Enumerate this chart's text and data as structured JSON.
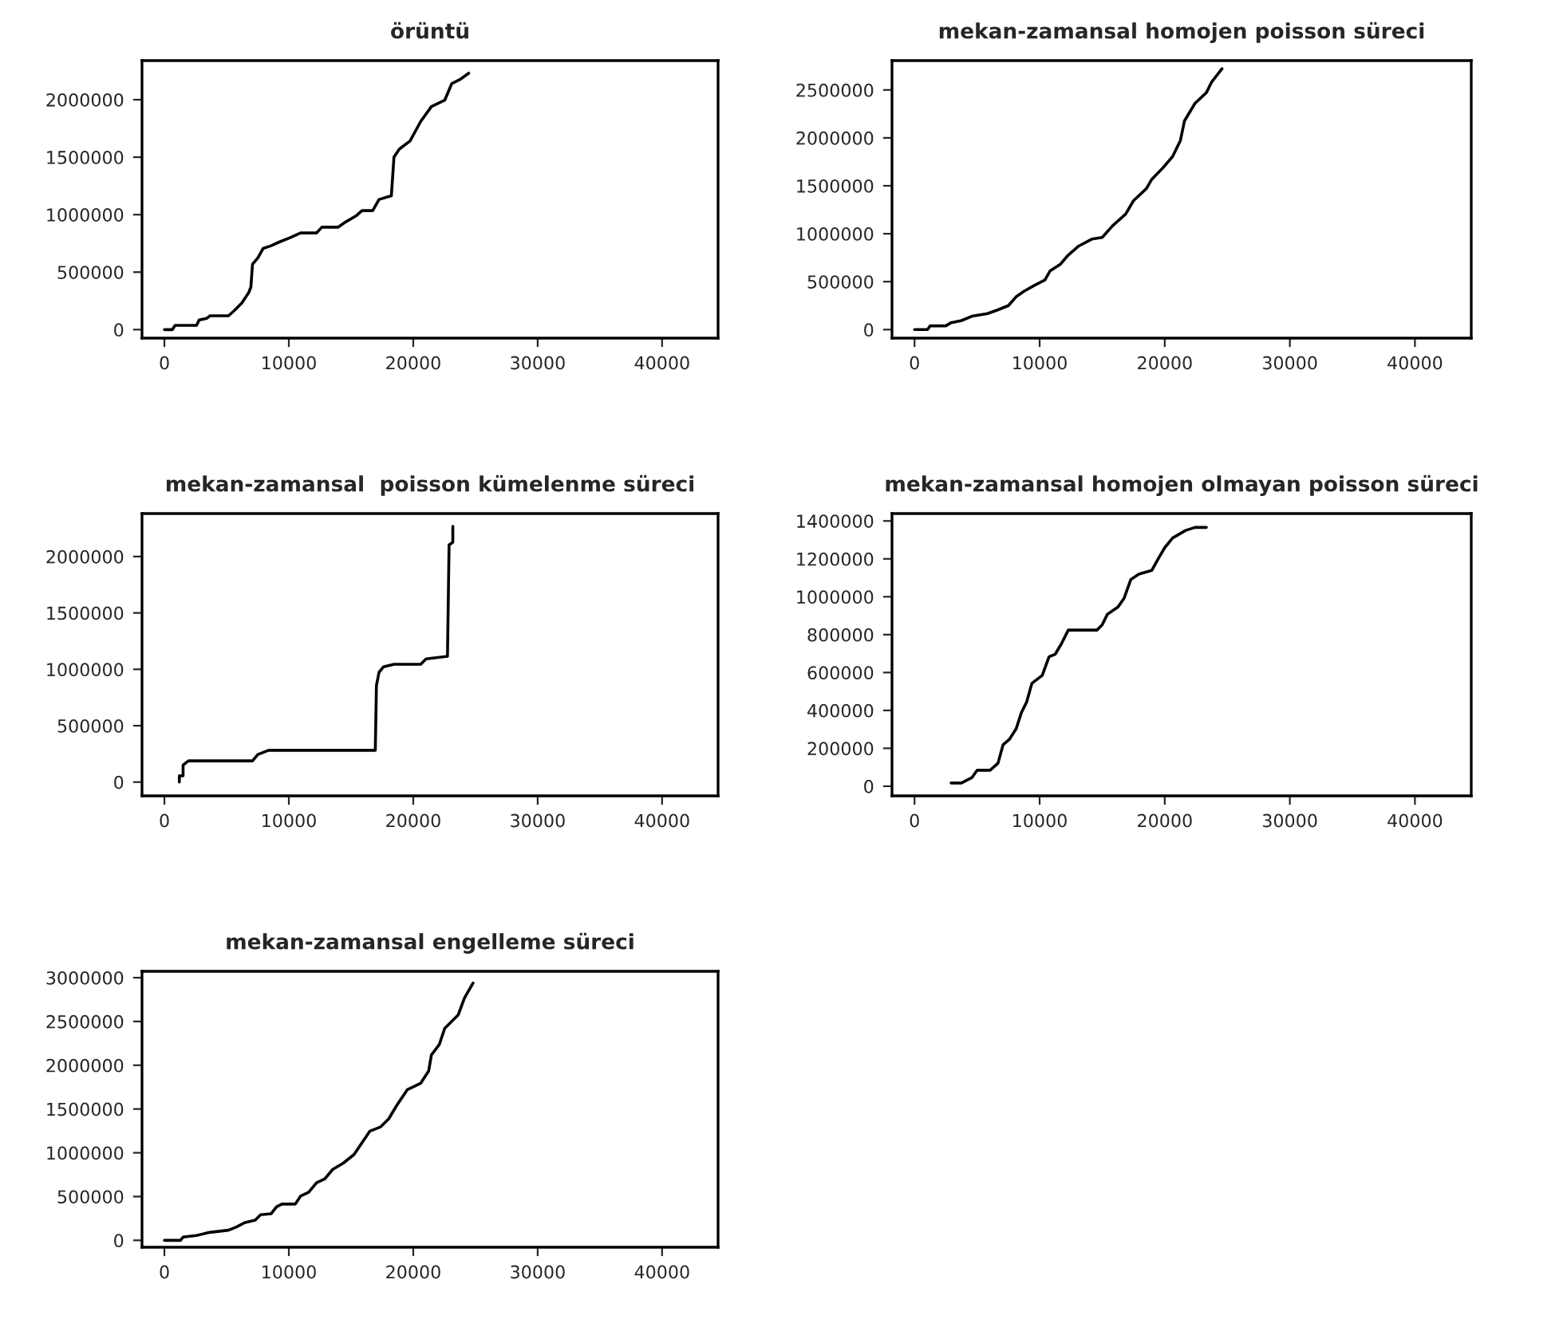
{
  "chart_data": [
    {
      "type": "line",
      "title": "örüntü",
      "color": "#000000",
      "xlim": [
        -1800,
        44500
      ],
      "ylim": [
        -74000,
        2340000
      ],
      "xticks": [
        0,
        10000,
        20000,
        30000,
        40000
      ],
      "yticks": [
        0,
        500000,
        1000000,
        1500000,
        2000000
      ],
      "x": [
        0,
        640,
        860,
        2580,
        2790,
        3430,
        3650,
        5150,
        5580,
        6220,
        6780,
        6950,
        7080,
        7510,
        7940,
        8580,
        9230,
        10090,
        10940,
        12230,
        12660,
        13950,
        14590,
        15450,
        15880,
        16740,
        17250,
        18240,
        18450,
        18880,
        19740,
        20600,
        21460,
        22530,
        23090,
        23820,
        24460
      ],
      "values": [
        0,
        0,
        37000,
        37000,
        83000,
        100000,
        120000,
        120000,
        162000,
        231000,
        323000,
        370000,
        568000,
        624000,
        707000,
        730000,
        762000,
        799000,
        841000,
        841000,
        891000,
        891000,
        938000,
        993000,
        1035000,
        1035000,
        1132000,
        1164000,
        1501000,
        1570000,
        1640000,
        1811000,
        1940000,
        1995000,
        2139000,
        2180000,
        2231000
      ]
    },
    {
      "type": "line",
      "title": "mekan-zamansal homojen poisson süreci",
      "color": "#000000",
      "xlim": [
        -1800,
        44500
      ],
      "ylim": [
        -89000,
        2806000
      ],
      "xticks": [
        0,
        10000,
        20000,
        30000,
        40000
      ],
      "yticks": [
        0,
        500000,
        1000000,
        1500000,
        2000000,
        2500000
      ],
      "x": [
        0,
        1040,
        1250,
        2500,
        2920,
        3750,
        4580,
        5830,
        6670,
        7500,
        8130,
        8750,
        9580,
        10420,
        10830,
        11670,
        12290,
        13130,
        14170,
        15000,
        15830,
        16880,
        17500,
        18540,
        18960,
        19790,
        20630,
        21250,
        21580,
        22420,
        23330,
        23750,
        24580
      ],
      "values": [
        0,
        0,
        39000,
        39000,
        72000,
        94000,
        139000,
        167000,
        206000,
        250000,
        344000,
        400000,
        461000,
        517000,
        611000,
        683000,
        778000,
        872000,
        944000,
        961000,
        1083000,
        1206000,
        1344000,
        1472000,
        1567000,
        1678000,
        1806000,
        1972000,
        2178000,
        2361000,
        2472000,
        2583000,
        2722000
      ]
    },
    {
      "type": "line",
      "title": "mekan-zamansal  poisson kümelenme süreci",
      "color": "#000000",
      "xlim": [
        -1800,
        44500
      ],
      "ylim": [
        -122000,
        2381000
      ],
      "xticks": [
        0,
        10000,
        20000,
        30000,
        40000
      ],
      "yticks": [
        0,
        500000,
        1000000,
        1500000,
        2000000
      ],
      "x": [
        1200,
        1200,
        1500,
        1500,
        1930,
        7080,
        7510,
        8370,
        16950,
        17040,
        17250,
        17600,
        18450,
        20600,
        21030,
        22750,
        22880,
        23180,
        23180
      ],
      "values": [
        0,
        56000,
        56000,
        151000,
        188000,
        188000,
        245000,
        282000,
        282000,
        856000,
        974000,
        1021000,
        1045000,
        1045000,
        1092000,
        1115000,
        2104000,
        2127000,
        2268000
      ]
    },
    {
      "type": "line",
      "title": "mekan-zamansal homojen olmayan poisson süreci",
      "color": "#000000",
      "xlim": [
        -1800,
        44500
      ],
      "ylim": [
        -51000,
        1439000
      ],
      "xticks": [
        0,
        10000,
        20000,
        30000,
        40000
      ],
      "yticks": [
        0,
        200000,
        400000,
        600000,
        800000,
        1000000,
        1200000,
        1400000
      ],
      "x": [
        2920,
        3750,
        4580,
        5000,
        6040,
        6670,
        7080,
        7580,
        8130,
        8540,
        8960,
        9380,
        10210,
        10750,
        11250,
        11750,
        12290,
        14580,
        15000,
        15420,
        16250,
        16750,
        17290,
        17920,
        18960,
        19500,
        20000,
        20630,
        21670,
        22420,
        23330
      ],
      "values": [
        17000,
        17000,
        45000,
        84000,
        84000,
        121000,
        219000,
        247000,
        304000,
        388000,
        444000,
        543000,
        585000,
        683000,
        697000,
        753000,
        824000,
        824000,
        852000,
        908000,
        945000,
        992000,
        1091000,
        1119000,
        1139000,
        1203000,
        1259000,
        1310000,
        1350000,
        1366000,
        1366000
      ]
    },
    {
      "type": "line",
      "title": "mekan-zamansal engelleme süreci",
      "color": "#000000",
      "xlim": [
        -1800,
        44500
      ],
      "ylim": [
        -79000,
        3073000
      ],
      "xticks": [
        0,
        10000,
        20000,
        30000,
        40000
      ],
      "yticks": [
        0,
        500000,
        1000000,
        1500000,
        2000000,
        2500000,
        3000000
      ],
      "x": [
        0,
        1290,
        1500,
        2580,
        3650,
        5150,
        5790,
        6440,
        7300,
        7730,
        8580,
        9010,
        9440,
        10520,
        10940,
        11590,
        12230,
        12880,
        13520,
        14380,
        15240,
        15880,
        16520,
        17380,
        18030,
        18670,
        19530,
        20600,
        21240,
        21460,
        22100,
        22530,
        23610,
        24120,
        24810
      ],
      "values": [
        0,
        0,
        37000,
        55000,
        91000,
        116000,
        152000,
        201000,
        231000,
        292000,
        304000,
        383000,
        414000,
        414000,
        505000,
        548000,
        657000,
        700000,
        809000,
        882000,
        980000,
        1114000,
        1248000,
        1296000,
        1388000,
        1540000,
        1722000,
        1795000,
        1935000,
        2118000,
        2239000,
        2422000,
        2574000,
        2769000,
        2939000
      ]
    }
  ]
}
